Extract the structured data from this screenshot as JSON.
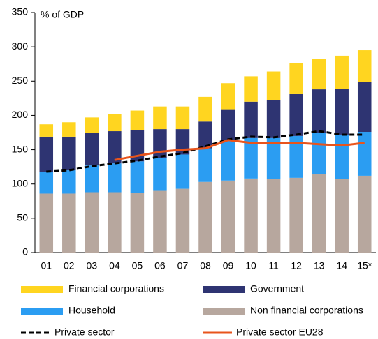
{
  "chart_data": {
    "type": "bar",
    "stacked": true,
    "y_label": "% of GDP",
    "categories": [
      "01",
      "02",
      "03",
      "04",
      "05",
      "06",
      "07",
      "08",
      "09",
      "10",
      "11",
      "12",
      "13",
      "14",
      "15*"
    ],
    "series": [
      {
        "name": "Financial corporations",
        "color": "#ffd520",
        "values": [
          18,
          21,
          22,
          25,
          28,
          33,
          33,
          36,
          38,
          37,
          42,
          45,
          44,
          48,
          46
        ]
      },
      {
        "name": "Government",
        "color": "#2e3472",
        "values": [
          51,
          49,
          48,
          47,
          46,
          42,
          37,
          39,
          46,
          53,
          55,
          61,
          63,
          67,
          73
        ]
      },
      {
        "name": "Household",
        "color": "#2b9df2",
        "values": [
          32,
          34,
          39,
          42,
          46,
          48,
          50,
          49,
          58,
          59,
          60,
          61,
          61,
          65,
          64
        ]
      },
      {
        "name": "Non financial corporations",
        "color": "#b7a79e",
        "values": [
          86,
          86,
          88,
          88,
          87,
          90,
          93,
          103,
          105,
          108,
          107,
          109,
          114,
          107,
          112
        ]
      },
      {
        "name": "Private sector",
        "type": "line",
        "style": "dashed",
        "color": "#000000",
        "values": [
          118,
          120,
          126,
          130,
          134,
          140,
          145,
          155,
          165,
          169,
          168,
          172,
          177,
          172,
          172
        ]
      },
      {
        "name": "Private sector EU28",
        "type": "line",
        "style": "solid",
        "color": "#e8541c",
        "values": [
          null,
          null,
          null,
          135,
          141,
          147,
          150,
          152,
          164,
          160,
          160,
          160,
          158,
          156,
          160
        ]
      }
    ],
    "ylim": [
      0,
      350
    ],
    "yticks": [
      0,
      50,
      100,
      150,
      200,
      250,
      300,
      350
    ],
    "grid": false
  }
}
